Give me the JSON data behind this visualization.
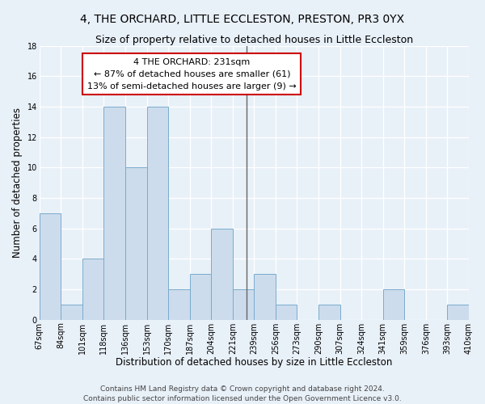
{
  "title": "4, THE ORCHARD, LITTLE ECCLESTON, PRESTON, PR3 0YX",
  "subtitle": "Size of property relative to detached houses in Little Eccleston",
  "xlabel": "Distribution of detached houses by size in Little Eccleston",
  "ylabel": "Number of detached properties",
  "bins": [
    "67sqm",
    "84sqm",
    "101sqm",
    "118sqm",
    "136sqm",
    "153sqm",
    "170sqm",
    "187sqm",
    "204sqm",
    "221sqm",
    "239sqm",
    "256sqm",
    "273sqm",
    "290sqm",
    "307sqm",
    "324sqm",
    "341sqm",
    "359sqm",
    "376sqm",
    "393sqm",
    "410sqm"
  ],
  "values": [
    7,
    1,
    4,
    14,
    10,
    14,
    2,
    3,
    6,
    2,
    3,
    1,
    0,
    1,
    0,
    0,
    2,
    0,
    0,
    1
  ],
  "bar_color": "#ccdcec",
  "bar_edge_color": "#7aabcc",
  "vline_x_bin": 10,
  "annotation_text_line1": "4 THE ORCHARD: 231sqm",
  "annotation_text_line2": "← 87% of detached houses are smaller (61)",
  "annotation_text_line3": "13% of semi-detached houses are larger (9) →",
  "vline_color": "#666666",
  "annotation_box_edge_color": "#cc0000",
  "annotation_box_face_color": "#ffffff",
  "ylim": [
    0,
    18
  ],
  "yticks": [
    0,
    2,
    4,
    6,
    8,
    10,
    12,
    14,
    16,
    18
  ],
  "footer_line1": "Contains HM Land Registry data © Crown copyright and database right 2024.",
  "footer_line2": "Contains public sector information licensed under the Open Government Licence v3.0.",
  "background_color": "#e8f0f8",
  "grid_color": "#ffffff",
  "title_fontsize": 10,
  "subtitle_fontsize": 9,
  "axis_label_fontsize": 8.5,
  "tick_fontsize": 7,
  "annotation_fontsize": 8,
  "footer_fontsize": 6.5
}
